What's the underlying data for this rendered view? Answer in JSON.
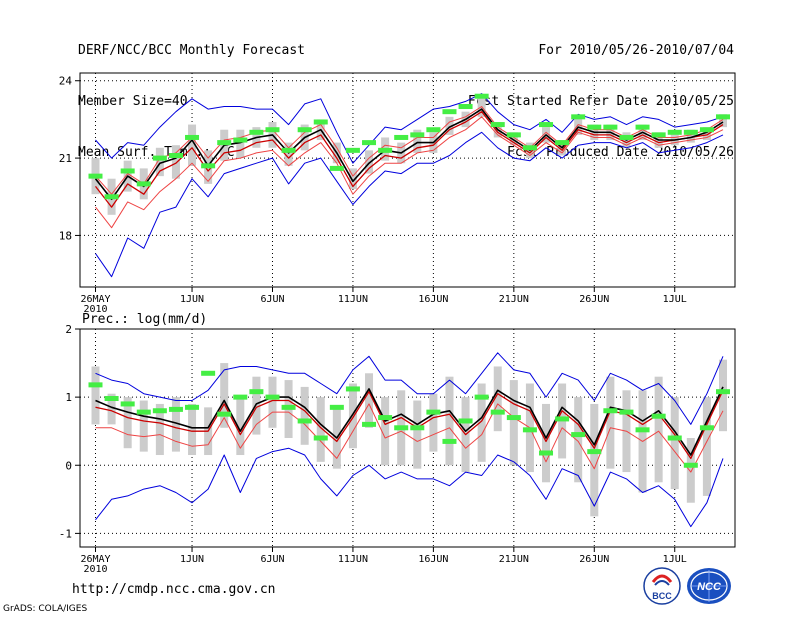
{
  "header": {
    "title": "DERF/NCC/BCC Monthly Forecast",
    "member_size": "Member Size=40",
    "variable": "Mean Surf. Temp.: °C",
    "forecast_period": "For 2010/05/26-2010/07/04",
    "fcst_started": "Fcst Started Refer Date 2010/05/25",
    "fcst_produced": "Fcst Produced Date 2010/05/26"
  },
  "footer": {
    "url": "http://cmdp.ncc.cma.gov.cn",
    "credit": "GrADS: COLA/IGES",
    "logo_bcc": "BCC",
    "logo_ncc": "NCC"
  },
  "colors": {
    "ensemble_mean": "#000000",
    "median": "#cc0000",
    "member": "#ee4444",
    "envelope": "#0000dd",
    "box": "#cccccc",
    "marker": "#44ee44"
  },
  "chart_data": [
    {
      "type": "line",
      "title": "Mean Surf. Temp.: °C",
      "xlabel": "",
      "ylabel": "",
      "ylim": [
        16,
        24.3
      ],
      "yticks": [
        18,
        21,
        24
      ],
      "x_tick_labels": [
        "26MAY",
        "1JUN",
        "6JUN",
        "11JUN",
        "16JUN",
        "21JUN",
        "26JUN",
        "1JUL"
      ],
      "x_tick_days": [
        0,
        6,
        11,
        16,
        21,
        26,
        31,
        36
      ],
      "x_year_label": "2010",
      "days": 40,
      "series": [
        {
          "name": "ensemble_mean",
          "values": [
            20.2,
            19.4,
            20.3,
            19.9,
            20.8,
            21.0,
            21.7,
            20.7,
            21.5,
            21.6,
            21.8,
            21.9,
            21.2,
            21.8,
            22.1,
            21.2,
            20.1,
            20.8,
            21.3,
            21.2,
            21.6,
            21.6,
            22.2,
            22.5,
            22.9,
            22.1,
            21.7,
            21.3,
            21.9,
            21.4,
            22.2,
            22.0,
            22.0,
            21.7,
            22.0,
            21.7,
            21.7,
            21.8,
            22.0,
            22.4
          ]
        },
        {
          "name": "median",
          "values": [
            19.9,
            19.1,
            20.0,
            19.6,
            20.5,
            20.8,
            21.4,
            20.5,
            21.2,
            21.3,
            21.6,
            21.7,
            21.0,
            21.6,
            21.9,
            21.0,
            19.9,
            20.6,
            21.1,
            21.0,
            21.4,
            21.5,
            22.1,
            22.4,
            22.8,
            22.0,
            21.6,
            21.2,
            21.8,
            21.3,
            22.1,
            21.9,
            21.9,
            21.6,
            21.9,
            21.6,
            21.7,
            21.8,
            21.9,
            22.3
          ]
        },
        {
          "name": "lower_member",
          "values": [
            19.1,
            18.3,
            19.3,
            19.0,
            19.7,
            20.2,
            20.8,
            20.1,
            20.9,
            21.0,
            21.2,
            21.3,
            20.7,
            21.2,
            21.6,
            20.8,
            19.6,
            20.3,
            20.8,
            20.8,
            21.2,
            21.3,
            21.8,
            22.1,
            22.6,
            21.9,
            21.5,
            21.1,
            21.6,
            21.2,
            22.0,
            21.8,
            21.8,
            21.5,
            21.8,
            21.5,
            21.6,
            21.7,
            21.8,
            22.1
          ]
        },
        {
          "name": "upper_member",
          "values": [
            20.3,
            19.6,
            20.4,
            20.0,
            21.0,
            21.2,
            21.8,
            21.0,
            21.7,
            21.8,
            22.0,
            22.1,
            21.4,
            22.0,
            22.3,
            21.4,
            20.3,
            21.0,
            21.5,
            21.4,
            21.8,
            21.8,
            22.4,
            22.6,
            23.0,
            22.2,
            21.8,
            21.4,
            22.0,
            21.5,
            22.3,
            22.1,
            22.1,
            21.8,
            22.1,
            21.8,
            21.8,
            21.9,
            22.1,
            22.5
          ]
        },
        {
          "name": "envelope_max",
          "values": [
            21.7,
            21.0,
            21.6,
            21.5,
            22.2,
            22.8,
            23.3,
            22.9,
            23.0,
            23.0,
            22.9,
            22.9,
            22.3,
            23.1,
            23.3,
            22.0,
            20.8,
            21.5,
            22.2,
            22.1,
            22.5,
            22.9,
            23.0,
            23.2,
            23.5,
            22.8,
            22.3,
            22.1,
            22.5,
            22.0,
            22.7,
            22.5,
            22.6,
            22.3,
            22.6,
            22.5,
            22.2,
            22.3,
            22.4,
            22.6
          ]
        },
        {
          "name": "envelope_min",
          "values": [
            17.3,
            16.4,
            17.9,
            17.5,
            18.9,
            19.1,
            20.2,
            19.5,
            20.4,
            20.6,
            20.8,
            21.0,
            20.0,
            20.8,
            21.0,
            20.1,
            19.2,
            19.9,
            20.5,
            20.4,
            20.8,
            20.8,
            21.1,
            21.6,
            22.0,
            21.4,
            21.0,
            20.9,
            21.4,
            21.0,
            21.5,
            21.6,
            21.6,
            21.4,
            21.6,
            21.2,
            21.3,
            21.4,
            21.6,
            21.9
          ]
        },
        {
          "name": "box_top",
          "values": [
            21.0,
            20.2,
            20.9,
            20.6,
            21.4,
            21.5,
            22.3,
            21.3,
            22.1,
            22.1,
            22.2,
            22.4,
            21.6,
            22.3,
            22.5,
            21.6,
            20.6,
            21.3,
            21.8,
            21.6,
            22.1,
            22.0,
            22.6,
            22.8,
            23.4,
            22.4,
            22.0,
            21.6,
            22.2,
            21.7,
            22.6,
            22.3,
            22.3,
            22.0,
            22.3,
            22.0,
            22.0,
            22.1,
            22.2,
            22.7
          ]
        },
        {
          "name": "box_bottom",
          "values": [
            19.6,
            18.8,
            19.7,
            19.4,
            20.3,
            20.2,
            20.7,
            20.0,
            20.9,
            21.0,
            21.4,
            21.4,
            20.7,
            21.3,
            21.7,
            20.8,
            19.8,
            20.4,
            20.9,
            20.8,
            21.2,
            21.2,
            21.9,
            22.2,
            22.6,
            21.8,
            21.5,
            21.0,
            21.6,
            21.1,
            21.9,
            21.7,
            21.7,
            21.4,
            21.7,
            21.4,
            21.5,
            21.6,
            21.7,
            22.2
          ]
        },
        {
          "name": "marker",
          "values": [
            20.3,
            19.5,
            20.5,
            20.0,
            21.0,
            21.1,
            21.8,
            20.7,
            21.6,
            21.7,
            22.0,
            22.1,
            21.3,
            22.1,
            22.4,
            20.6,
            21.3,
            21.6,
            21.3,
            21.8,
            21.9,
            22.1,
            22.8,
            23.0,
            23.4,
            22.3,
            21.9,
            21.4,
            22.3,
            21.6,
            22.6,
            22.2,
            22.2,
            21.8,
            22.2,
            21.9,
            22.0,
            22.0,
            22.1,
            22.6
          ]
        }
      ]
    },
    {
      "type": "line",
      "title": "Prec.: log(mm/d)",
      "xlabel": "",
      "ylabel": "",
      "ylim": [
        -1.2,
        2
      ],
      "yticks": [
        -1,
        0,
        1,
        2
      ],
      "x_tick_labels": [
        "26MAY",
        "1JUN",
        "6JUN",
        "11JUN",
        "16JUN",
        "21JUN",
        "26JUN",
        "1JUL"
      ],
      "x_tick_days": [
        0,
        6,
        11,
        16,
        21,
        26,
        31,
        36
      ],
      "x_year_label": "2010",
      "days": 40,
      "series": [
        {
          "name": "ensemble_mean",
          "values": [
            0.95,
            0.85,
            0.78,
            0.72,
            0.68,
            0.62,
            0.55,
            0.55,
            0.95,
            0.5,
            0.9,
            1.0,
            1.0,
            0.85,
            0.6,
            0.4,
            0.75,
            1.12,
            0.65,
            0.75,
            0.6,
            0.75,
            0.8,
            0.5,
            0.7,
            1.1,
            0.95,
            0.85,
            0.4,
            0.85,
            0.65,
            0.3,
            0.85,
            0.8,
            0.65,
            0.8,
            0.5,
            0.15,
            0.65,
            1.15
          ]
        },
        {
          "name": "median",
          "values": [
            0.85,
            0.8,
            0.7,
            0.65,
            0.62,
            0.55,
            0.5,
            0.5,
            0.9,
            0.45,
            0.85,
            0.95,
            0.95,
            0.8,
            0.55,
            0.35,
            0.7,
            1.08,
            0.6,
            0.7,
            0.55,
            0.7,
            0.75,
            0.45,
            0.65,
            1.05,
            0.9,
            0.8,
            0.35,
            0.8,
            0.6,
            0.25,
            0.8,
            0.75,
            0.6,
            0.75,
            0.45,
            0.1,
            0.6,
            1.1
          ]
        },
        {
          "name": "lower_member",
          "values": [
            0.55,
            0.55,
            0.45,
            0.42,
            0.45,
            0.35,
            0.28,
            0.3,
            0.7,
            0.25,
            0.6,
            0.78,
            0.78,
            0.6,
            0.35,
            0.1,
            0.5,
            0.9,
            0.4,
            0.5,
            0.35,
            0.45,
            0.55,
            0.25,
            0.45,
            0.9,
            0.7,
            0.55,
            0.05,
            0.55,
            0.35,
            -0.05,
            0.55,
            0.5,
            0.35,
            0.5,
            0.2,
            -0.1,
            0.35,
            0.8
          ]
        },
        {
          "name": "envelope_max",
          "values": [
            1.35,
            1.25,
            1.2,
            1.05,
            1.0,
            0.95,
            0.95,
            1.1,
            1.4,
            1.45,
            1.45,
            1.4,
            1.35,
            1.35,
            1.2,
            1.05,
            1.4,
            1.6,
            1.25,
            1.25,
            1.05,
            1.05,
            1.25,
            1.05,
            1.35,
            1.65,
            1.4,
            1.35,
            1.0,
            1.35,
            1.25,
            0.95,
            1.35,
            1.25,
            1.1,
            1.2,
            0.95,
            0.6,
            1.05,
            1.6
          ]
        },
        {
          "name": "envelope_min",
          "values": [
            -0.8,
            -0.5,
            -0.45,
            -0.35,
            -0.3,
            -0.4,
            -0.55,
            -0.35,
            0.15,
            -0.4,
            0.1,
            0.2,
            0.25,
            0.15,
            -0.2,
            -0.45,
            -0.15,
            0.0,
            -0.2,
            -0.1,
            -0.2,
            -0.2,
            -0.3,
            -0.1,
            -0.15,
            0.15,
            0.05,
            -0.15,
            -0.5,
            -0.05,
            -0.15,
            -0.6,
            -0.1,
            -0.2,
            -0.4,
            -0.3,
            -0.5,
            -0.9,
            -0.55,
            0.1
          ]
        },
        {
          "name": "box_top",
          "values": [
            1.45,
            1.05,
            1.0,
            0.95,
            0.9,
            1.0,
            0.9,
            0.85,
            1.5,
            1.0,
            1.3,
            1.3,
            1.25,
            1.15,
            1.0,
            0.85,
            1.2,
            1.35,
            1.0,
            1.1,
            0.95,
            1.05,
            1.3,
            1.0,
            1.2,
            1.45,
            1.25,
            1.2,
            0.9,
            1.2,
            1.0,
            0.9,
            1.3,
            1.1,
            1.1,
            1.3,
            1.0,
            0.4,
            1.0,
            1.55
          ]
        },
        {
          "name": "box_bottom",
          "values": [
            0.6,
            0.6,
            0.25,
            0.2,
            0.15,
            0.2,
            0.15,
            0.15,
            0.55,
            0.15,
            0.45,
            0.55,
            0.4,
            0.3,
            0.05,
            -0.05,
            0.25,
            0.55,
            0.0,
            0.0,
            -0.05,
            0.2,
            0.0,
            -0.1,
            0.05,
            0.5,
            0.0,
            -0.1,
            -0.25,
            0.1,
            -0.25,
            -0.75,
            -0.05,
            -0.1,
            -0.4,
            -0.25,
            -0.35,
            -0.55,
            -0.45,
            0.5
          ]
        },
        {
          "name": "marker",
          "values": [
            1.18,
            0.98,
            0.9,
            0.78,
            0.8,
            0.82,
            0.85,
            1.35,
            0.75,
            1.0,
            1.08,
            1.0,
            0.85,
            0.65,
            0.4,
            0.85,
            1.12,
            0.6,
            0.7,
            0.55,
            0.55,
            0.78,
            0.35,
            0.65,
            1.0,
            0.78,
            0.7,
            0.52,
            0.18,
            0.68,
            0.45,
            0.2,
            0.8,
            0.78,
            0.52,
            0.72,
            0.4,
            0.0,
            0.55,
            1.08
          ]
        }
      ]
    }
  ]
}
